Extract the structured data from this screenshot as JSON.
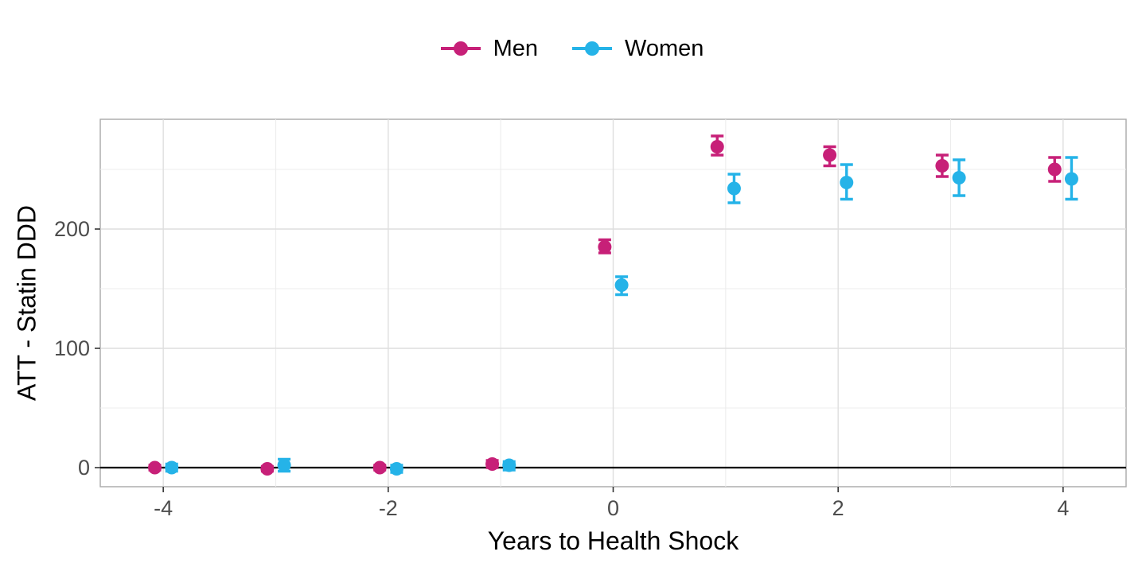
{
  "chart_data": {
    "type": "scatter",
    "title": "",
    "xlabel": "Years to Health Shock",
    "ylabel": "ATT - Statin DDD",
    "x": [
      -4,
      -3,
      -2,
      -1,
      0,
      1,
      2,
      3,
      4
    ],
    "x_ticks": [
      -4,
      -2,
      0,
      2,
      4
    ],
    "x_minor_ticks": [
      -3,
      -1,
      1,
      3
    ],
    "y_ticks": [
      0,
      100,
      200
    ],
    "y_minor_ticks": [
      50,
      150,
      250
    ],
    "xlim": [
      -4.56,
      4.56
    ],
    "ylim": [
      -16,
      292
    ],
    "zero_reference_line": 0,
    "legend_position": "top-center",
    "grid": "on",
    "series": [
      {
        "name": "Men",
        "color": "#C72078",
        "dodge": -0.075,
        "values": [
          0,
          -1,
          0,
          3,
          185,
          269,
          262,
          253,
          250
        ],
        "ymin": [
          -2,
          -3,
          -2,
          0,
          180,
          262,
          253,
          244,
          240
        ],
        "ymax": [
          2,
          1,
          2,
          6,
          191,
          278,
          269,
          262,
          260
        ]
      },
      {
        "name": "Women",
        "color": "#25B3E8",
        "dodge": 0.075,
        "values": [
          0,
          2,
          -1,
          2,
          153,
          234,
          239,
          243,
          242
        ],
        "ymin": [
          -3,
          -3,
          -4,
          -2,
          145,
          222,
          225,
          228,
          225
        ],
        "ymax": [
          3,
          7,
          2,
          5,
          160,
          246,
          254,
          258,
          260
        ]
      }
    ],
    "style": {
      "background": "#FFFFFF",
      "panel_border": "#A9A9A9",
      "grid_major": "#DEDEDE",
      "grid_minor": "#ECECEC",
      "zero_line": "#000000",
      "tick_label_color": "#4D4D4D",
      "axis_title_color": "#000000"
    }
  }
}
